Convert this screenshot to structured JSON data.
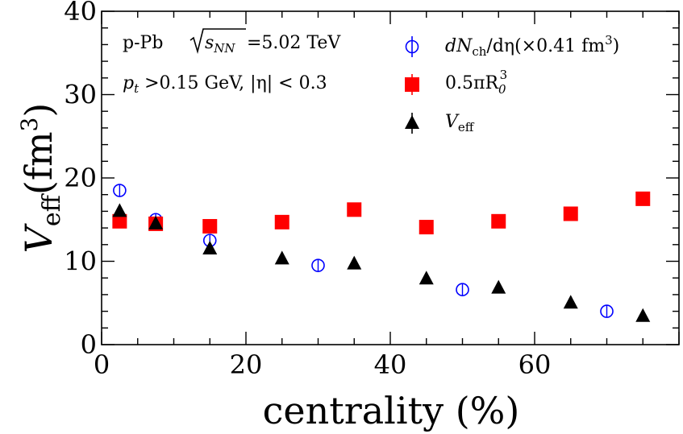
{
  "chart_data": {
    "type": "scatter",
    "title": "",
    "xlabel": "centrality (%)",
    "ylabel": {
      "main": "V",
      "sub": "eff",
      "unit_open": "(fm",
      "unit_sup": "3",
      "unit_close": ")"
    },
    "xlim": [
      0,
      80
    ],
    "ylim": [
      0,
      40
    ],
    "xticks": [
      0,
      20,
      40,
      60
    ],
    "yticks": [
      0,
      10,
      20,
      30,
      40
    ],
    "grid": false,
    "annotations": {
      "system_label": "p-Pb",
      "energy_label": "=5.02 TeV",
      "sqrt_arg": "s",
      "sqrt_sub": "NN",
      "cuts_pt": "p",
      "cuts_pt_sub": "t",
      "cuts_text": " >0.15 GeV, |η| < 0.3"
    },
    "legend_position": "top-right",
    "series": [
      {
        "name": "dNch/dη(×0.41 fm³)",
        "legend_main": "dN",
        "legend_sub": "ch",
        "legend_rest": "/dη(×0.41 fm",
        "legend_sup": "3",
        "legend_close": ")",
        "marker": "open-circle",
        "color": "#0000ff",
        "x": [
          2.5,
          7.5,
          15,
          30,
          50,
          70
        ],
        "y": [
          18.5,
          15.0,
          12.5,
          9.5,
          6.6,
          4.0
        ]
      },
      {
        "name": "0.5πR0³",
        "legend_main": "0.5πR",
        "legend_sub": "0",
        "legend_sup": "3",
        "marker": "square",
        "color": "#ff0000",
        "x": [
          2.5,
          7.5,
          15,
          25,
          35,
          45,
          55,
          65,
          75
        ],
        "y": [
          14.8,
          14.5,
          14.2,
          14.7,
          16.2,
          14.1,
          14.8,
          15.7,
          17.5
        ]
      },
      {
        "name": "Veff",
        "legend_main": "V",
        "legend_sub": "eff",
        "marker": "triangle",
        "color": "#000000",
        "x": [
          2.5,
          7.5,
          15,
          25,
          35,
          45,
          55,
          65,
          75
        ],
        "y": [
          16.0,
          14.5,
          11.5,
          10.3,
          9.7,
          7.9,
          6.8,
          5.0,
          3.4
        ]
      }
    ]
  }
}
